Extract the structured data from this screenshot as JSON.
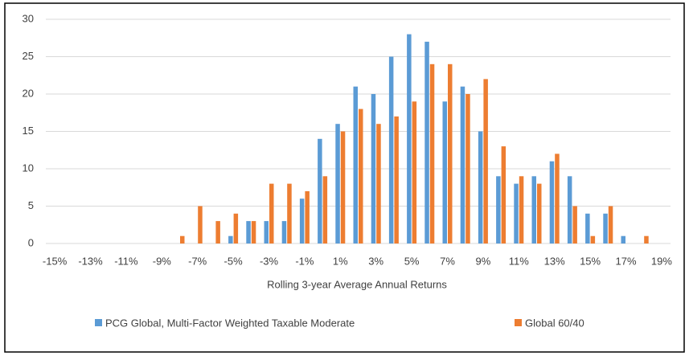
{
  "chart_data": {
    "type": "bar",
    "x_label": "Rolling 3-year Average Annual Returns",
    "categories": [
      "-15%",
      null,
      "-13%",
      null,
      "-11%",
      null,
      "-9%",
      null,
      "-7%",
      null,
      "-5%",
      null,
      "-3%",
      null,
      "-1%",
      null,
      "1%",
      null,
      "3%",
      null,
      "5%",
      null,
      "7%",
      null,
      "9%",
      null,
      "11%",
      null,
      "13%",
      null,
      "15%",
      null,
      "17%",
      null,
      "19%"
    ],
    "series": [
      {
        "name": "PCG Global, Multi-Factor Weighted Taxable Moderate",
        "color": "#5b9bd5",
        "values": [
          0,
          0,
          0,
          0,
          0,
          0,
          0,
          0,
          0,
          0,
          1,
          3,
          3,
          3,
          6,
          14,
          16,
          21,
          20,
          25,
          28,
          27,
          19,
          21,
          15,
          9,
          8,
          9,
          11,
          9,
          4,
          4,
          1,
          0,
          0
        ]
      },
      {
        "name": "Global 60/40",
        "color": "#ed7d31",
        "values": [
          0,
          0,
          0,
          0,
          0,
          0,
          0,
          1,
          5,
          3,
          4,
          3,
          8,
          8,
          7,
          9,
          15,
          18,
          16,
          17,
          19,
          24,
          24,
          20,
          22,
          13,
          9,
          8,
          12,
          5,
          1,
          5,
          0,
          1,
          0
        ]
      }
    ],
    "ylim": [
      0,
      30
    ],
    "yticks": [
      0,
      5,
      10,
      15,
      20,
      25,
      30
    ],
    "grid": true,
    "legend": "bottom"
  }
}
